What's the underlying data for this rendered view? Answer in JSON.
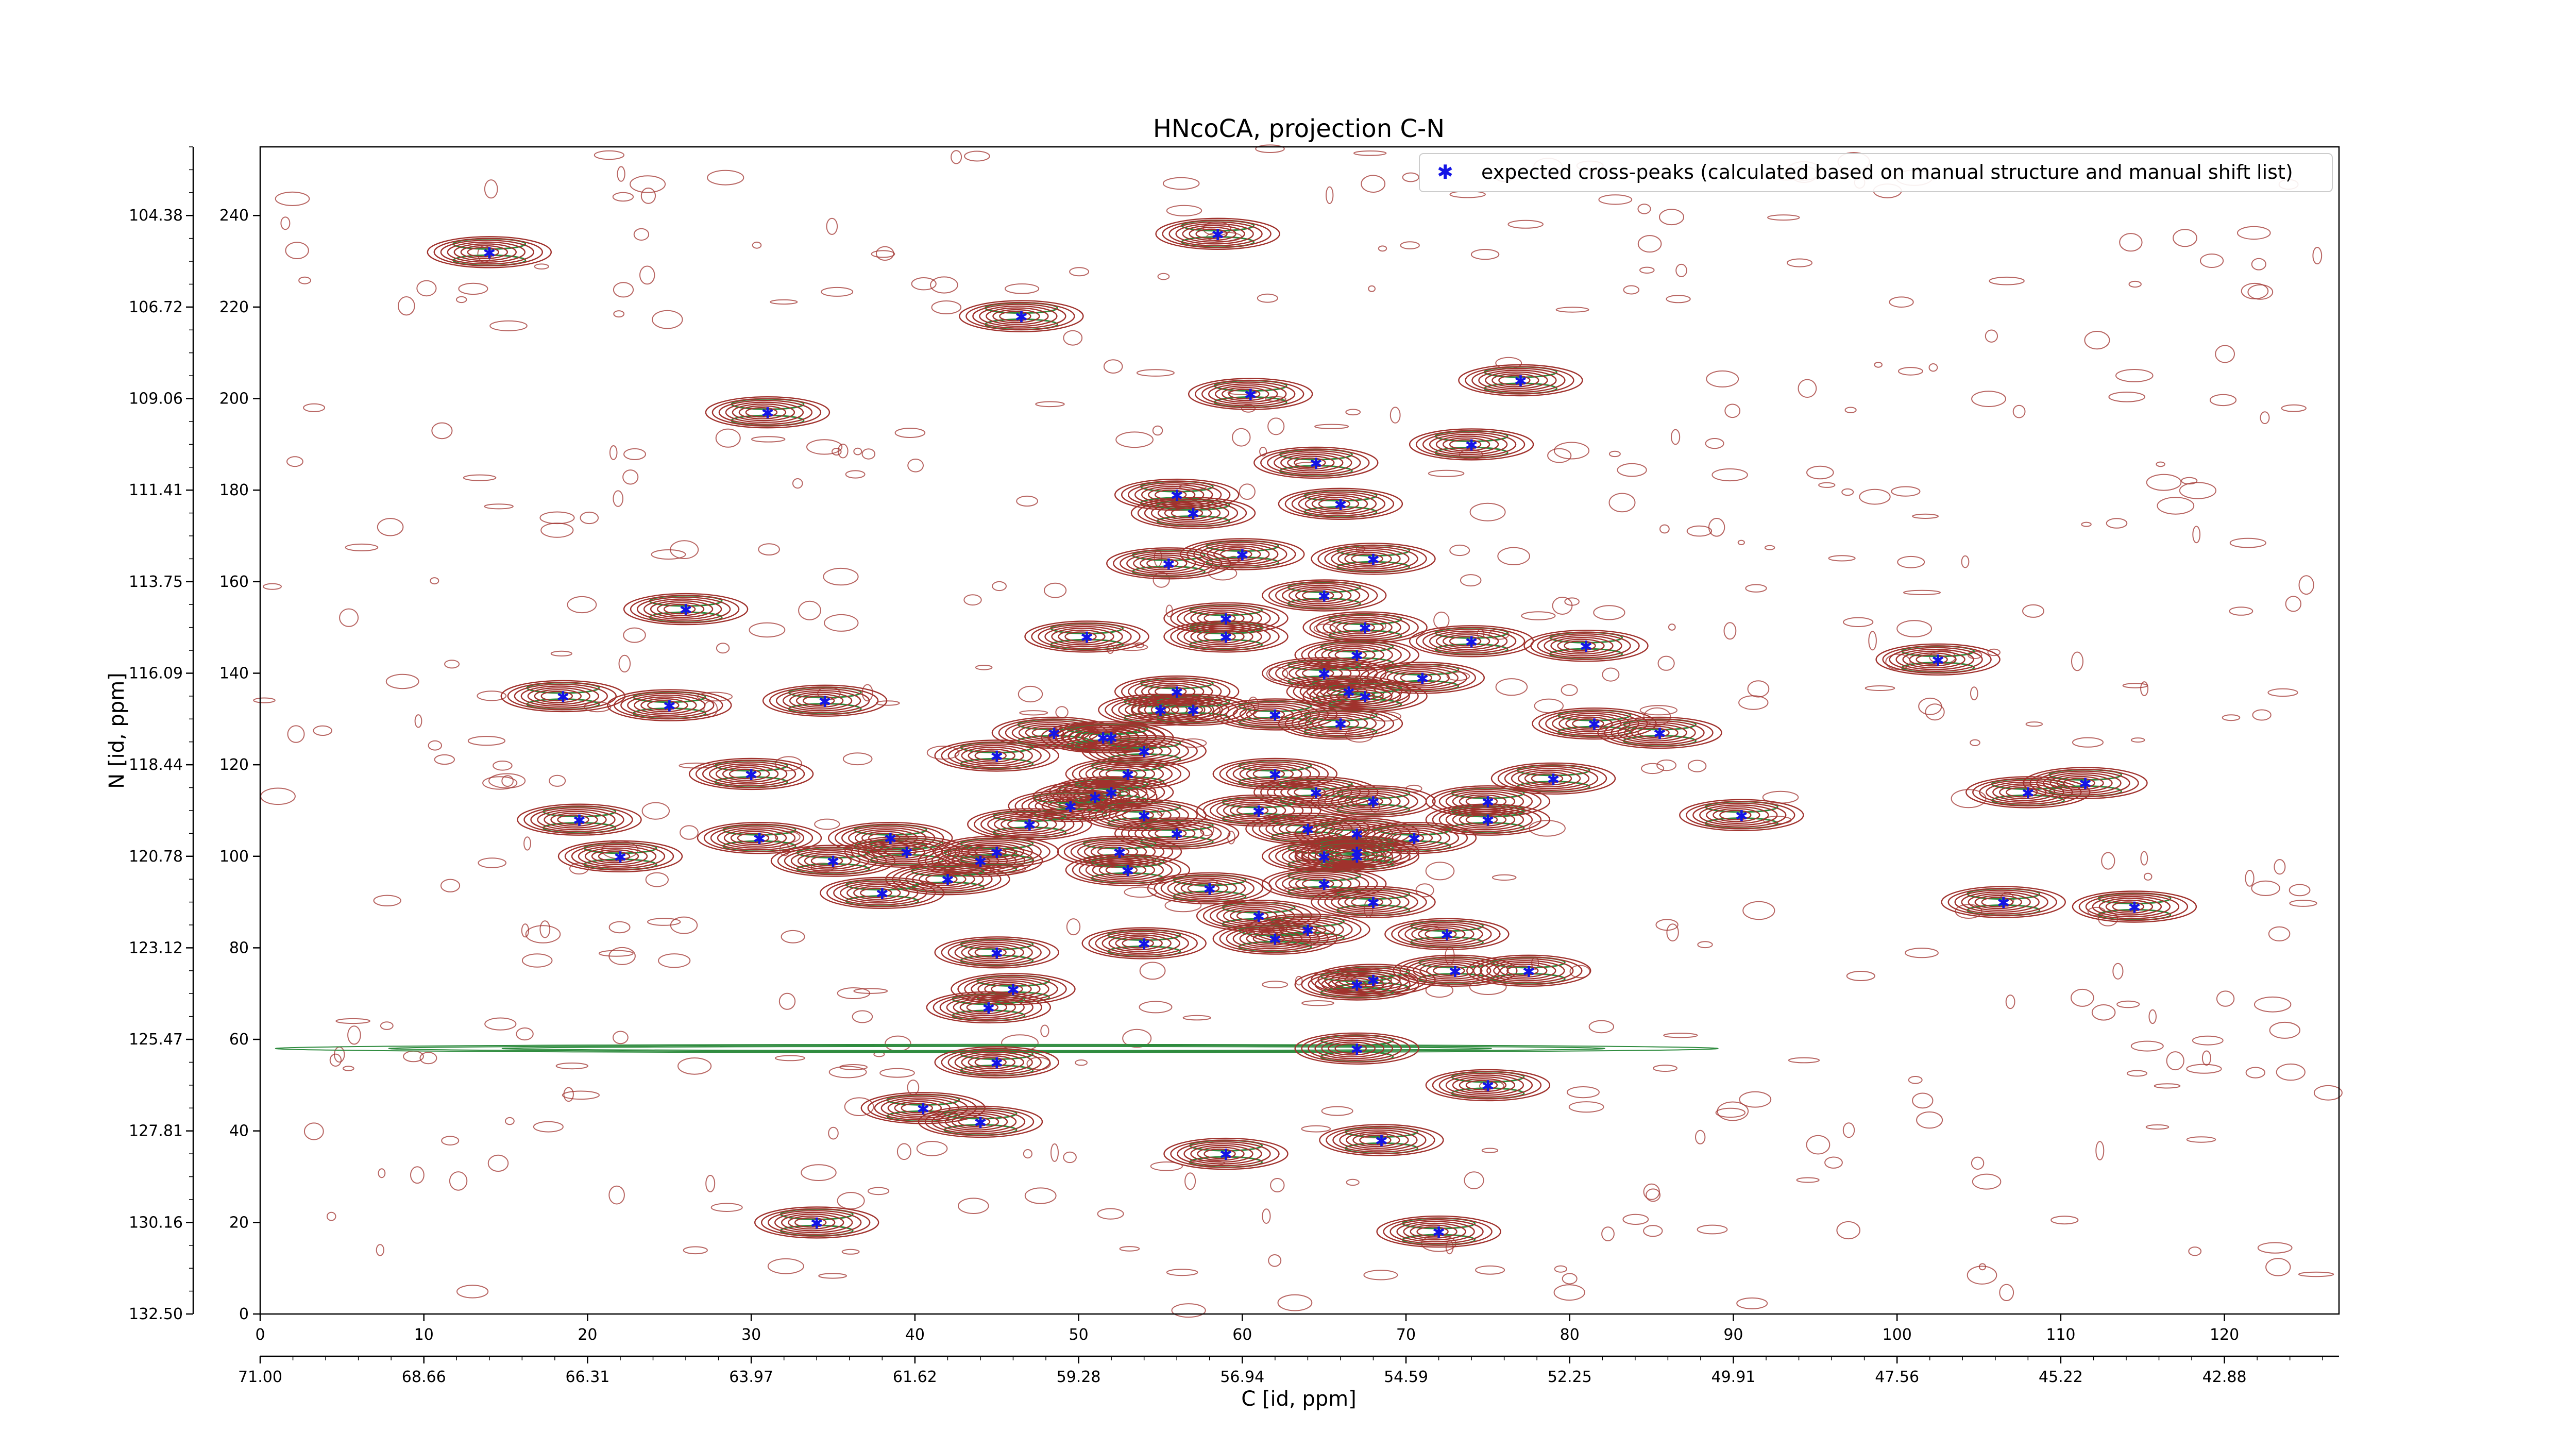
{
  "chart_data": {
    "type": "scatter",
    "title": "HNcoCA, projection C-N",
    "xlabel": "C [id, ppm]",
    "ylabel": "N [id, ppm]",
    "xlim": [
      0,
      127
    ],
    "ylim": [
      0,
      255
    ],
    "x_index_ticks": [
      "0",
      "10",
      "20",
      "30",
      "40",
      "50",
      "60",
      "70",
      "80",
      "90",
      "100",
      "110",
      "120"
    ],
    "x_ppm_ticks": [
      "71.00",
      "68.66",
      "66.31",
      "63.97",
      "61.62",
      "59.28",
      "56.94",
      "54.59",
      "52.25",
      "49.91",
      "47.56",
      "45.22",
      "42.88"
    ],
    "y_index_ticks": [
      "0",
      "20",
      "40",
      "60",
      "80",
      "100",
      "120",
      "140",
      "160",
      "180",
      "200",
      "220",
      "240"
    ],
    "y_ppm_ticks": [
      "132.50",
      "130.16",
      "127.81",
      "125.47",
      "123.12",
      "120.78",
      "118.44",
      "116.09",
      "113.75",
      "111.41",
      "109.06",
      "106.72",
      "104.38"
    ],
    "legend": {
      "position": "top-right",
      "label": "expected cross-peaks (calculated based on manual structure and manual shift list)"
    },
    "colors": {
      "positive_contour": "#a0322d",
      "negative_contour": "#2e8b3e",
      "marker": "#1414e6"
    },
    "series": [
      {
        "name": "expected cross-peaks (calculated based on manual structure and manual shift list)",
        "points": [
          {
            "x": 14.0,
            "y": 232
          },
          {
            "x": 58.5,
            "y": 236
          },
          {
            "x": 46.5,
            "y": 218
          },
          {
            "x": 31.0,
            "y": 197
          },
          {
            "x": 60.5,
            "y": 201
          },
          {
            "x": 77.0,
            "y": 204
          },
          {
            "x": 64.5,
            "y": 186
          },
          {
            "x": 74.0,
            "y": 190
          },
          {
            "x": 56.0,
            "y": 179
          },
          {
            "x": 57.0,
            "y": 175
          },
          {
            "x": 66.0,
            "y": 177
          },
          {
            "x": 55.5,
            "y": 164
          },
          {
            "x": 60.0,
            "y": 166
          },
          {
            "x": 68.0,
            "y": 165
          },
          {
            "x": 26.0,
            "y": 154
          },
          {
            "x": 65.0,
            "y": 157
          },
          {
            "x": 59.0,
            "y": 152
          },
          {
            "x": 59.0,
            "y": 148
          },
          {
            "x": 67.5,
            "y": 150
          },
          {
            "x": 50.5,
            "y": 148
          },
          {
            "x": 74.0,
            "y": 147
          },
          {
            "x": 81.0,
            "y": 146
          },
          {
            "x": 102.5,
            "y": 143
          },
          {
            "x": 67.0,
            "y": 144
          },
          {
            "x": 65.0,
            "y": 140
          },
          {
            "x": 71.0,
            "y": 139
          },
          {
            "x": 66.5,
            "y": 136
          },
          {
            "x": 67.5,
            "y": 135
          },
          {
            "x": 56.0,
            "y": 136
          },
          {
            "x": 18.5,
            "y": 135
          },
          {
            "x": 25.0,
            "y": 133
          },
          {
            "x": 34.5,
            "y": 134
          },
          {
            "x": 55.0,
            "y": 132
          },
          {
            "x": 57.0,
            "y": 132
          },
          {
            "x": 62.0,
            "y": 131
          },
          {
            "x": 66.0,
            "y": 129
          },
          {
            "x": 81.5,
            "y": 129
          },
          {
            "x": 85.5,
            "y": 127
          },
          {
            "x": 48.5,
            "y": 127
          },
          {
            "x": 51.5,
            "y": 126
          },
          {
            "x": 52.0,
            "y": 126
          },
          {
            "x": 45.0,
            "y": 122
          },
          {
            "x": 54.0,
            "y": 123
          },
          {
            "x": 30.0,
            "y": 118
          },
          {
            "x": 53.0,
            "y": 118
          },
          {
            "x": 62.0,
            "y": 118
          },
          {
            "x": 79.0,
            "y": 117
          },
          {
            "x": 108.0,
            "y": 114
          },
          {
            "x": 111.5,
            "y": 116
          },
          {
            "x": 51.0,
            "y": 113
          },
          {
            "x": 52.0,
            "y": 114
          },
          {
            "x": 49.5,
            "y": 111
          },
          {
            "x": 64.5,
            "y": 114
          },
          {
            "x": 68.0,
            "y": 112
          },
          {
            "x": 75.0,
            "y": 112
          },
          {
            "x": 61.0,
            "y": 110
          },
          {
            "x": 54.0,
            "y": 109
          },
          {
            "x": 75.0,
            "y": 108
          },
          {
            "x": 90.5,
            "y": 109
          },
          {
            "x": 19.5,
            "y": 108
          },
          {
            "x": 47.0,
            "y": 107
          },
          {
            "x": 64.0,
            "y": 106
          },
          {
            "x": 67.0,
            "y": 105
          },
          {
            "x": 56.0,
            "y": 105
          },
          {
            "x": 70.5,
            "y": 104
          },
          {
            "x": 30.5,
            "y": 104
          },
          {
            "x": 38.5,
            "y": 104
          },
          {
            "x": 22.0,
            "y": 100
          },
          {
            "x": 35.0,
            "y": 99
          },
          {
            "x": 39.5,
            "y": 101
          },
          {
            "x": 44.0,
            "y": 99
          },
          {
            "x": 45.0,
            "y": 101
          },
          {
            "x": 52.5,
            "y": 101
          },
          {
            "x": 53.0,
            "y": 97
          },
          {
            "x": 65.0,
            "y": 100
          },
          {
            "x": 67.0,
            "y": 101
          },
          {
            "x": 67.0,
            "y": 100
          },
          {
            "x": 42.0,
            "y": 95
          },
          {
            "x": 38.0,
            "y": 92
          },
          {
            "x": 58.0,
            "y": 93
          },
          {
            "x": 65.0,
            "y": 94
          },
          {
            "x": 68.0,
            "y": 90
          },
          {
            "x": 106.5,
            "y": 90
          },
          {
            "x": 114.5,
            "y": 89
          },
          {
            "x": 61.0,
            "y": 87
          },
          {
            "x": 64.0,
            "y": 84
          },
          {
            "x": 72.5,
            "y": 83
          },
          {
            "x": 62.0,
            "y": 82
          },
          {
            "x": 54.0,
            "y": 81
          },
          {
            "x": 45.0,
            "y": 79
          },
          {
            "x": 73.0,
            "y": 75
          },
          {
            "x": 77.5,
            "y": 75
          },
          {
            "x": 46.0,
            "y": 71
          },
          {
            "x": 68.0,
            "y": 73
          },
          {
            "x": 67.0,
            "y": 72
          },
          {
            "x": 44.5,
            "y": 67
          },
          {
            "x": 67.0,
            "y": 58
          },
          {
            "x": 45.0,
            "y": 55
          },
          {
            "x": 75.0,
            "y": 50
          },
          {
            "x": 40.5,
            "y": 45
          },
          {
            "x": 44.0,
            "y": 42
          },
          {
            "x": 68.5,
            "y": 38
          },
          {
            "x": 59.0,
            "y": 35
          },
          {
            "x": 34.0,
            "y": 20
          },
          {
            "x": 72.0,
            "y": 18
          }
        ]
      }
    ]
  }
}
